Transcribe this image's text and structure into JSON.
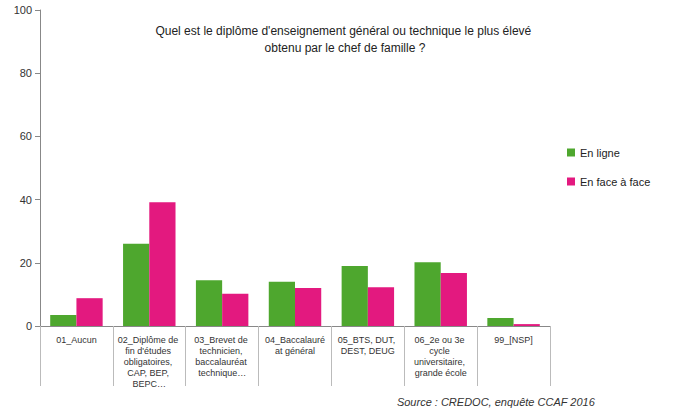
{
  "chart_data": {
    "type": "bar",
    "title": "Quel est le diplôme d'enseignement général ou technique le plus élevé obtenu par le chef de famille ?",
    "categories": [
      "01_Aucun",
      "02_Diplôme de fin d'études obligatoires, CAP, BEP, BEPC…",
      "03_Brevet de technicien, baccalauréat technique…",
      "04_Baccalauréat général",
      "05_BTS, DUT, DEST, DEUG",
      "06_2e ou 3e cycle universitaire, grande école",
      "99_[NSP]"
    ],
    "series": [
      {
        "name": "En ligne",
        "color": "#4ea72e",
        "values": [
          3.5,
          26,
          14.5,
          14,
          19,
          20.2,
          2.5
        ]
      },
      {
        "name": "En face à face",
        "color": "#e3197f",
        "values": [
          8.8,
          39.2,
          10.2,
          12,
          12.3,
          16.8,
          0.6
        ]
      }
    ],
    "ylim": [
      0,
      100
    ],
    "yticks": [
      0,
      20,
      40,
      60,
      80,
      100
    ],
    "grid": false,
    "legend": "right",
    "annotations": [
      "Source : CREDOC, enquête CCAF 2016"
    ]
  }
}
